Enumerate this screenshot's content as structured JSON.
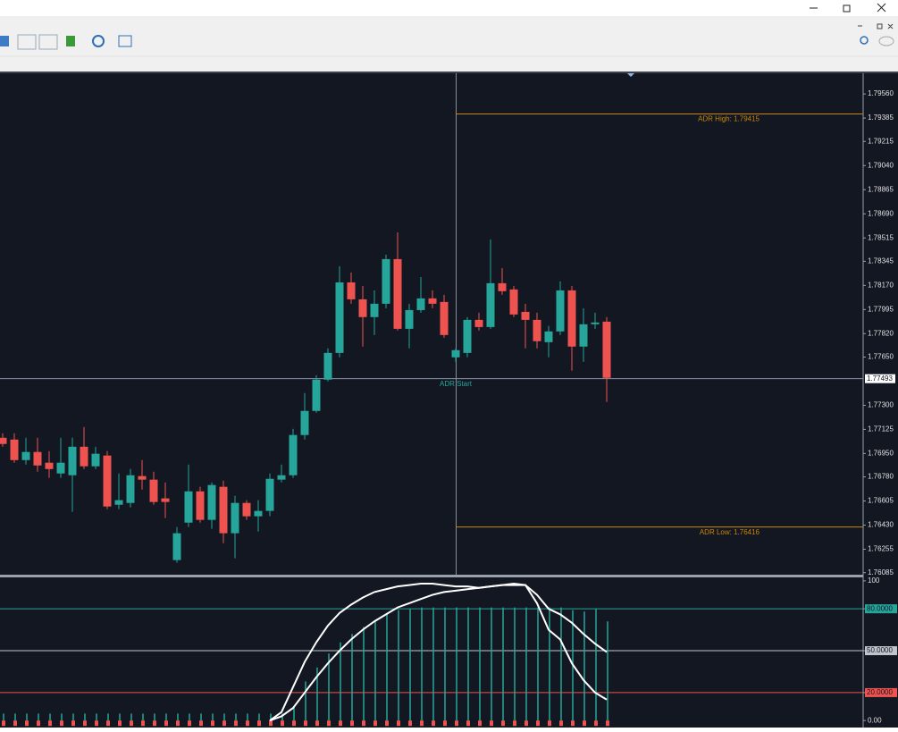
{
  "chart_data": [
    {
      "type": "candlestick",
      "up_color": "#26a69a",
      "down_color": "#ef5350",
      "open": [
        1.77064,
        1.77051,
        1.76902,
        1.76961,
        1.76883,
        1.76805,
        1.76792,
        1.76999,
        1.76857,
        1.76935,
        1.76578,
        1.76591,
        1.76786,
        1.7676,
        1.76624,
        1.76176,
        1.76448,
        1.76675,
        1.76468,
        1.76708,
        1.76371,
        1.76591,
        1.76494,
        1.76533,
        1.7676,
        1.76792,
        1.77084,
        1.77259,
        1.77486,
        1.7768,
        1.78192,
        1.78069,
        1.7794,
        1.78037,
        1.78361,
        1.77855,
        1.77991,
        1.78076,
        1.7805,
        1.77648,
        1.7768,
        1.7792,
        1.77868,
        1.78186,
        1.78141,
        1.77978,
        1.7792,
        1.77758,
        1.77836,
        1.78134,
        1.77726,
        1.77888,
        1.77907
      ],
      "high": [
        1.77097,
        1.77097,
        1.77064,
        1.77064,
        1.76967,
        1.77064,
        1.77064,
        1.77142,
        1.76999,
        1.76967,
        1.76805,
        1.76837,
        1.76902,
        1.76818,
        1.7674,
        1.76416,
        1.7687,
        1.76708,
        1.7674,
        1.76753,
        1.76643,
        1.76611,
        1.76611,
        1.76805,
        1.7687,
        1.77129,
        1.77389,
        1.77518,
        1.77713,
        1.78309,
        1.78264,
        1.78166,
        1.78134,
        1.78393,
        1.78555,
        1.78037,
        1.78231,
        1.78134,
        1.78102,
        1.77713,
        1.7794,
        1.77972,
        1.78504,
        1.78296,
        1.78166,
        1.78037,
        1.77972,
        1.77875,
        1.78199,
        1.78166,
        1.78004,
        1.77972,
        1.7794
      ],
      "low": [
        1.76999,
        1.76883,
        1.7687,
        1.76818,
        1.76773,
        1.76773,
        1.76526,
        1.76837,
        1.76837,
        1.76546,
        1.76546,
        1.76559,
        1.76688,
        1.76578,
        1.76481,
        1.76157,
        1.76416,
        1.76448,
        1.76403,
        1.76299,
        1.76189,
        1.76468,
        1.76384,
        1.76494,
        1.7674,
        1.76773,
        1.77051,
        1.77246,
        1.77473,
        1.77648,
        1.78037,
        1.77726,
        1.7781,
        1.78004,
        1.77842,
        1.77713,
        1.77972,
        1.78004,
        1.7779,
        1.77615,
        1.77648,
        1.77842,
        1.77855,
        1.78102,
        1.7794,
        1.77713,
        1.77713,
        1.77648,
        1.7781,
        1.77551,
        1.77615,
        1.77855,
        1.77324
      ],
      "close": [
        1.77019,
        1.76902,
        1.76961,
        1.76863,
        1.76837,
        1.76883,
        1.76999,
        1.76857,
        1.76948,
        1.76565,
        1.76611,
        1.76792,
        1.7676,
        1.76598,
        1.76598,
        1.76371,
        1.76675,
        1.76468,
        1.76721,
        1.76371,
        1.76591,
        1.76494,
        1.76533,
        1.76766,
        1.76792,
        1.77084,
        1.77259,
        1.77486,
        1.7768,
        1.78192,
        1.78069,
        1.7794,
        1.78037,
        1.78361,
        1.77855,
        1.77991,
        1.78076,
        1.78037,
        1.7781,
        1.777,
        1.7792,
        1.77868,
        1.78186,
        1.78128,
        1.77959,
        1.7792,
        1.77765,
        1.77836,
        1.78134,
        1.77726,
        1.77888,
        1.77901,
        1.77499
      ],
      "ylim": [
        1.7607,
        1.7971
      ],
      "yticks": [
        {
          "value": 1.7956,
          "label": "1.79560"
        },
        1.79385,
        1.79215,
        {
          "value": 1.7904,
          "label": "1.79040"
        },
        1.78865,
        {
          "value": 1.7869,
          "label": "1.78690"
        },
        1.78515,
        1.78345,
        {
          "value": 1.7817,
          "label": "1.78170"
        },
        1.77995,
        {
          "value": 1.7782,
          "label": "1.77820"
        },
        {
          "value": 1.7765,
          "label": "1.77650"
        },
        {
          "value": 1.773,
          "label": "1.77300"
        },
        1.77125,
        {
          "value": 1.7695,
          "label": "1.76950"
        },
        {
          "value": 1.7678,
          "label": "1.76780"
        },
        1.76605,
        {
          "value": 1.7643,
          "label": "1.76430"
        },
        1.76255,
        1.76085
      ],
      "adr_high": {
        "label": "ADR High: 1.79415",
        "value": 1.79415
      },
      "adr_low": {
        "label": "ADR Low: 1.76416",
        "value": 1.76416
      },
      "adr_start": "ADR Start",
      "current_price": 1.77493,
      "level_color": "#c8860a"
    },
    {
      "type": "indicator",
      "histogram": {
        "color": "#26a69a",
        "values": [
          5,
          5,
          5,
          5,
          5,
          5,
          5,
          5,
          5,
          5,
          5,
          5,
          5,
          5,
          5,
          5,
          5,
          5,
          5,
          5,
          5,
          5,
          5,
          5,
          5,
          10,
          28,
          38,
          48,
          56,
          62,
          67,
          72,
          76,
          79,
          80,
          81,
          81,
          81,
          81,
          81,
          81,
          81,
          81,
          81,
          81,
          81,
          81,
          81,
          79,
          78,
          80,
          71
        ]
      },
      "series": [
        {
          "color": "#ffffff",
          "values": [
            null,
            null,
            null,
            null,
            null,
            null,
            null,
            null,
            null,
            null,
            null,
            null,
            null,
            null,
            null,
            null,
            null,
            null,
            null,
            null,
            null,
            null,
            null,
            0,
            6,
            24,
            42,
            56,
            68,
            77,
            83,
            88,
            92,
            94,
            96,
            97,
            98,
            98,
            97,
            96,
            96,
            95,
            96,
            97,
            98,
            97,
            84,
            65,
            58,
            41,
            29,
            20,
            15
          ]
        },
        {
          "color": "#ffffff",
          "values": [
            null,
            null,
            null,
            null,
            null,
            null,
            null,
            null,
            null,
            null,
            null,
            null,
            null,
            null,
            null,
            null,
            null,
            null,
            null,
            null,
            null,
            null,
            null,
            0,
            3,
            9,
            20,
            31,
            41,
            50,
            58,
            65,
            71,
            76,
            81,
            84,
            87,
            90,
            92,
            93,
            94,
            95,
            96,
            97,
            97,
            97,
            90,
            80,
            76,
            70,
            62,
            55,
            49
          ]
        }
      ],
      "ylim": [
        -5,
        102.5
      ],
      "yticks": [
        100,
        {
          "value": 80,
          "label": "80.0000"
        },
        {
          "value": 50,
          "label": "50.0000"
        },
        {
          "value": 20,
          "label": "20.0000"
        },
        {
          "value": 0,
          "label": "0.00"
        }
      ],
      "level_colors": [
        "#26a69a",
        "#c0c4cc",
        "#ef5350"
      ]
    }
  ]
}
